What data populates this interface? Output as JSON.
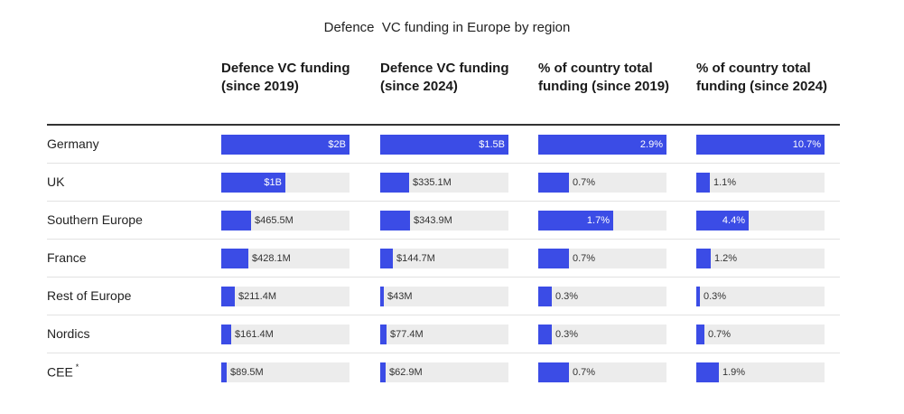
{
  "chart_data": {
    "type": "table",
    "title": "Defence  VC funding in Europe by region",
    "columns": [
      {
        "key": "c2019",
        "header": "Defence VC funding (since 2019)",
        "max": 2000
      },
      {
        "key": "c2024",
        "header": "Defence VC funding (since 2024)",
        "max": 1500
      },
      {
        "key": "p2019",
        "header": "% of country total funding (since 2019)",
        "max": 2.9
      },
      {
        "key": "p2024",
        "header": "% of country total funding (since 2024)",
        "max": 10.7
      }
    ],
    "rows": [
      {
        "region": "Germany",
        "marker": "",
        "values": [
          2000,
          1500,
          2.9,
          10.7
        ],
        "labels": [
          "$2B",
          "$1.5B",
          "2.9%",
          "10.7%"
        ]
      },
      {
        "region": "UK",
        "marker": "",
        "values": [
          1000,
          335.1,
          0.7,
          1.1
        ],
        "labels": [
          "$1B",
          "$335.1M",
          "0.7%",
          "1.1%"
        ]
      },
      {
        "region": "Southern Europe",
        "marker": "",
        "values": [
          465.5,
          343.9,
          1.7,
          4.4
        ],
        "labels": [
          "$465.5M",
          "$343.9M",
          "1.7%",
          "4.4%"
        ]
      },
      {
        "region": "France",
        "marker": "",
        "values": [
          428.1,
          144.7,
          0.7,
          1.2
        ],
        "labels": [
          "$428.1M",
          "$144.7M",
          "0.7%",
          "1.2%"
        ]
      },
      {
        "region": "Rest of Europe",
        "marker": "",
        "values": [
          211.4,
          43,
          0.3,
          0.3
        ],
        "labels": [
          "$211.4M",
          "$43M",
          "0.3%",
          "0.3%"
        ]
      },
      {
        "region": "Nordics",
        "marker": "",
        "values": [
          161.4,
          77.4,
          0.3,
          0.7
        ],
        "labels": [
          "$161.4M",
          "$77.4M",
          "0.3%",
          "0.7%"
        ]
      },
      {
        "region": "CEE",
        "marker": "*",
        "values": [
          89.5,
          62.9,
          0.7,
          1.9
        ],
        "labels": [
          "$89.5M",
          "$62.9M",
          "0.7%",
          "1.9%"
        ]
      }
    ],
    "bar_color": "#3b4ce6",
    "track_color": "#ececec"
  }
}
